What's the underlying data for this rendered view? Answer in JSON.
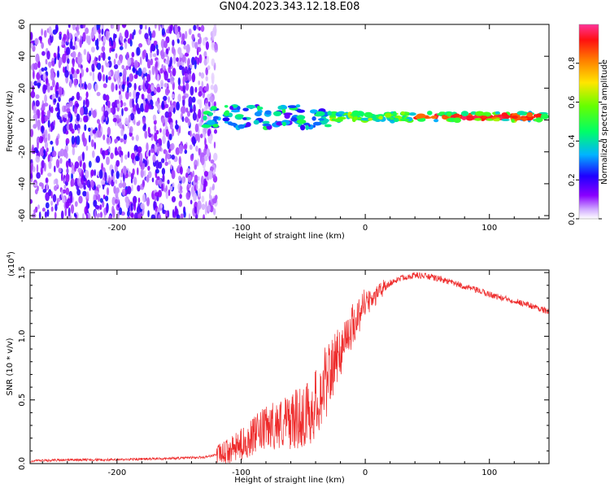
{
  "figure": {
    "title": "GN04.2023.343.12.18.E08"
  },
  "colors": {
    "snr_line": "#ee2a2a",
    "axis": "#000000",
    "colormap": [
      "#ffffff",
      "#c8a6ff",
      "#7a00ff",
      "#0000ff",
      "#00ccff",
      "#00ff66",
      "#66ff00",
      "#ffee00",
      "#ff8800",
      "#ff0000",
      "#ff3399"
    ]
  },
  "chart_data": [
    {
      "type": "heatmap",
      "title": "GN04.2023.343.12.18.E08",
      "xlabel": "Height of straight line (km)",
      "ylabel": "Frequency (Hz)",
      "xlim": [
        -270,
        148
      ],
      "ylim": [
        -62,
        60
      ],
      "xticks": [
        -200,
        -100,
        0,
        100
      ],
      "xtick_labels": [
        "-200",
        "-100",
        "0",
        "100"
      ],
      "yticks": [
        60,
        40,
        20,
        0,
        -20,
        -40,
        -60
      ],
      "ytick_labels": [
        "60",
        "40",
        "20",
        "0",
        "-20",
        "-40",
        "-60"
      ],
      "colorbar": {
        "label": "Normalized spectral amplitude",
        "range": [
          0,
          1
        ],
        "ticks": [
          0.0,
          0.2,
          0.4,
          0.6,
          0.8
        ],
        "tick_labels": [
          "0.0",
          "0.2",
          "0.4",
          "0.6",
          "0.8"
        ]
      },
      "regions": [
        {
          "description": "broadband noise",
          "x_range": [
            -270,
            -120
          ],
          "freq_range": [
            -62,
            60
          ],
          "amplitude": "0.0-0.25"
        },
        {
          "description": "signal band",
          "x_range": [
            -130,
            148
          ],
          "freq_center": 2,
          "freq_halfwidth": [
            8,
            2
          ],
          "amplitude": "0.3-1.0"
        }
      ],
      "grid": false
    },
    {
      "type": "line",
      "xlabel": "Height of straight line (km)",
      "ylabel": "SNR (10 * v/v)",
      "y_multiplier": "(x10",
      "y_multiplier_exp": "4",
      "y_multiplier_close": ")",
      "xlim": [
        -270,
        148
      ],
      "ylim": [
        0,
        1.52
      ],
      "xticks": [
        -200,
        -100,
        0,
        100
      ],
      "xtick_labels": [
        "-200",
        "-100",
        "0",
        "100"
      ],
      "yticks": [
        0.0,
        0.5,
        1.0,
        1.5
      ],
      "ytick_labels": [
        "0.0",
        "0.5",
        "1.0",
        "1.5"
      ],
      "series": [
        {
          "color": "#ee2a2a",
          "x": [
            -270,
            -240,
            -200,
            -160,
            -130,
            -115,
            -105,
            -95,
            -85,
            -75,
            -65,
            -55,
            -45,
            -38,
            -33,
            -28,
            -24,
            -20,
            -16,
            -12,
            -8,
            -4,
            0,
            5,
            10,
            15,
            20,
            25,
            30,
            40,
            50,
            60,
            70,
            80,
            90,
            100,
            110,
            120,
            130,
            140,
            148
          ],
          "y": [
            0.02,
            0.03,
            0.03,
            0.04,
            0.05,
            0.08,
            0.12,
            0.18,
            0.25,
            0.3,
            0.32,
            0.35,
            0.4,
            0.5,
            0.62,
            0.72,
            0.82,
            0.9,
            0.98,
            1.05,
            1.12,
            1.2,
            1.27,
            1.3,
            1.34,
            1.38,
            1.41,
            1.44,
            1.46,
            1.48,
            1.47,
            1.45,
            1.42,
            1.39,
            1.36,
            1.33,
            1.3,
            1.28,
            1.25,
            1.22,
            1.19
          ]
        }
      ],
      "grid": false
    }
  ]
}
